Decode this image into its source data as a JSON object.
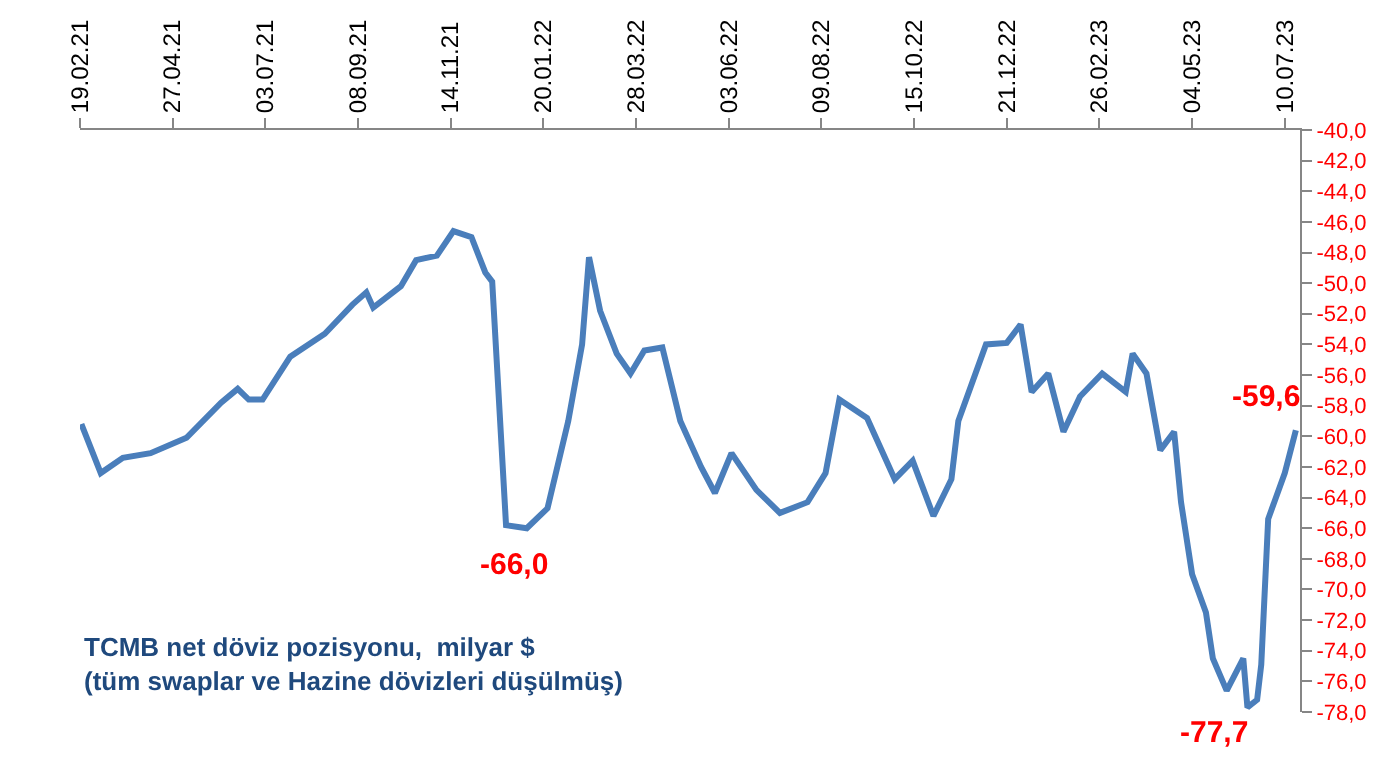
{
  "chart_data": {
    "type": "line",
    "x": [
      "2021-02-20",
      "2021-03-06",
      "2021-03-22",
      "2021-04-11",
      "2021-05-07",
      "2021-06-01",
      "2021-06-13",
      "2021-06-21",
      "2021-07-01",
      "2021-07-21",
      "2021-08-15",
      "2021-09-04",
      "2021-09-14",
      "2021-09-19",
      "2021-10-09",
      "2021-10-20",
      "2021-11-04",
      "2021-11-16",
      "2021-11-29",
      "2021-12-09",
      "2021-12-14",
      "2021-12-24",
      "2022-01-08",
      "2022-01-23",
      "2022-02-07",
      "2022-02-17",
      "2022-02-22",
      "2022-03-02",
      "2022-03-14",
      "2022-03-24",
      "2022-04-03",
      "2022-04-16",
      "2022-04-29",
      "2022-05-14",
      "2022-05-24",
      "2022-06-05",
      "2022-06-23",
      "2022-07-10",
      "2022-07-30",
      "2022-08-12",
      "2022-08-22",
      "2022-09-11",
      "2022-10-01",
      "2022-10-14",
      "2022-10-29",
      "2022-11-11",
      "2022-11-16",
      "2022-12-06",
      "2022-12-21",
      "2022-12-31",
      "2023-01-08",
      "2023-01-20",
      "2023-01-31",
      "2023-02-12",
      "2023-02-28",
      "2023-03-17",
      "2023-03-22",
      "2023-04-01",
      "2023-04-11",
      "2023-04-21",
      "2023-04-26",
      "2023-05-04",
      "2023-05-14",
      "2023-05-19",
      "2023-05-29",
      "2023-06-10",
      "2023-06-13",
      "2023-06-20",
      "2023-06-23",
      "2023-06-28",
      "2023-07-10",
      "2023-07-18"
    ],
    "series": [
      {
        "color": "#4a7ebb",
        "values": [
          -59.2,
          -62.4,
          -61.4,
          -61.1,
          -60.1,
          -57.8,
          -56.9,
          -57.6,
          -57.6,
          -54.8,
          -53.3,
          -51.4,
          -50.6,
          -51.6,
          -50.2,
          -48.5,
          -48.2,
          -46.6,
          -47.0,
          -49.3,
          -49.9,
          -65.8,
          -66.0,
          -64.7,
          -59.0,
          -54.0,
          -48.3,
          -51.8,
          -54.6,
          -55.9,
          -54.4,
          -54.2,
          -59.0,
          -62.0,
          -63.7,
          -61.1,
          -63.5,
          -65.0,
          -64.3,
          -62.4,
          -57.6,
          -58.8,
          -62.8,
          -61.6,
          -65.2,
          -62.8,
          -59.0,
          -54.0,
          -53.9,
          -52.7,
          -57.1,
          -55.9,
          -59.7,
          -57.4,
          -55.9,
          -57.1,
          -54.6,
          -55.9,
          -60.9,
          -59.7,
          -64.3,
          -69.0,
          -71.5,
          -74.5,
          -76.6,
          -74.5,
          -77.7,
          -77.2,
          -74.9,
          -65.4,
          -62.4,
          -59.6
        ]
      }
    ],
    "xlim": [
      "2021-02-19",
      "2023-07-21"
    ],
    "xticks": [
      {
        "value": "2021-02-19",
        "label": "19.02.21"
      },
      {
        "value": "2021-04-27",
        "label": "27.04.21"
      },
      {
        "value": "2021-07-03",
        "label": "03.07.21"
      },
      {
        "value": "2021-09-08",
        "label": "08.09.21"
      },
      {
        "value": "2021-11-14",
        "label": "14.11.21"
      },
      {
        "value": "2022-01-20",
        "label": "20.01.22"
      },
      {
        "value": "2022-03-28",
        "label": "28.03.22"
      },
      {
        "value": "2022-06-03",
        "label": "03.06.22"
      },
      {
        "value": "2022-08-09",
        "label": "09.08.22"
      },
      {
        "value": "2022-10-15",
        "label": "15.10.22"
      },
      {
        "value": "2022-12-21",
        "label": "21.12.22"
      },
      {
        "value": "2023-02-26",
        "label": "26.02.23"
      },
      {
        "value": "2023-05-04",
        "label": "04.05.23"
      },
      {
        "value": "2023-07-10",
        "label": "10.07.23"
      }
    ],
    "ylim": [
      -78,
      -40
    ],
    "yticks": [
      {
        "value": -40,
        "label": "-40,0"
      },
      {
        "value": -42,
        "label": "-42,0"
      },
      {
        "value": -44,
        "label": "-44,0"
      },
      {
        "value": -46,
        "label": "-46,0"
      },
      {
        "value": -48,
        "label": "-48,0"
      },
      {
        "value": -50,
        "label": "-50,0"
      },
      {
        "value": -52,
        "label": "-52,0"
      },
      {
        "value": -54,
        "label": "-54,0"
      },
      {
        "value": -56,
        "label": "-56,0"
      },
      {
        "value": -58,
        "label": "-58,0"
      },
      {
        "value": -60,
        "label": "-60,0"
      },
      {
        "value": -62,
        "label": "-62,0"
      },
      {
        "value": -64,
        "label": "-64,0"
      },
      {
        "value": -66,
        "label": "-66,0"
      },
      {
        "value": -68,
        "label": "-68,0"
      },
      {
        "value": -70,
        "label": "-70,0"
      },
      {
        "value": -72,
        "label": "-72,0"
      },
      {
        "value": -74,
        "label": "-74,0"
      },
      {
        "value": -76,
        "label": "-76,0"
      },
      {
        "value": -78,
        "label": "-78,0"
      }
    ],
    "annotations": [
      {
        "text": "-66,0",
        "x": "2022-01-08",
        "y": -66.0
      },
      {
        "text": "-77,7",
        "x": "2023-06-13",
        "y": -77.7
      },
      {
        "text": "-59,6",
        "x": "2023-07-18",
        "y": -59.6
      },
      "TCMB net döviz pozisyonu,  milyar $\n(tüm swaplar ve Hazine dövizleri düşülmüş)"
    ],
    "marker": "none",
    "line_style": "solid"
  }
}
